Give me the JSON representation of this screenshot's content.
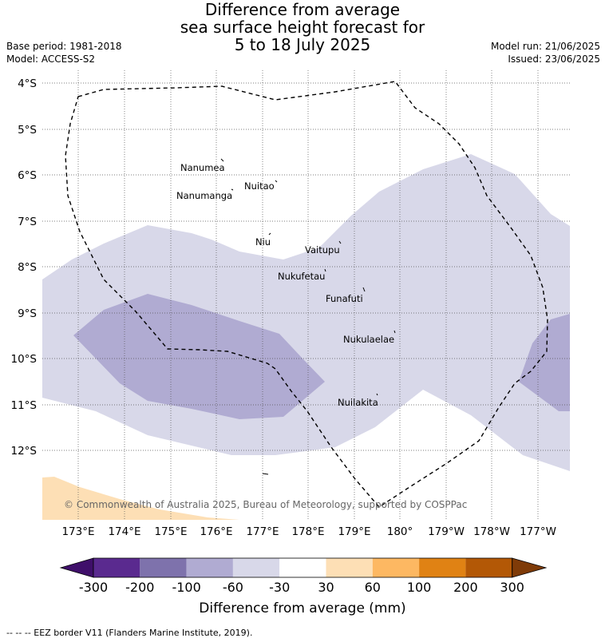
{
  "title": {
    "line1": "Difference from average",
    "line2": "sea surface height forecast for",
    "line3": "5 to 18 July 2025"
  },
  "meta": {
    "base_period": "Base period: 1981-2018",
    "model": "Model: ACCESS-S2",
    "model_run": "Model run: 21/06/2025",
    "issued": "Issued: 23/06/2025"
  },
  "map": {
    "lat_labels": [
      "4°S",
      "5°S",
      "6°S",
      "7°S",
      "8°S",
      "9°S",
      "10°S",
      "11°S",
      "12°S"
    ],
    "lon_labels": [
      "173°E",
      "174°E",
      "175°E",
      "176°E",
      "177°E",
      "178°E",
      "179°E",
      "180°",
      "179°W",
      "178°W",
      "177°W"
    ],
    "places": [
      "Nanumea",
      "Nuitao",
      "Nanumanga",
      "Niu",
      "Vaitupu",
      "Nukufetau",
      "Funafuti",
      "Nukulaelae",
      "Nuilakita"
    ],
    "copyright": "© Commonwealth of Australia 2025, Bureau of Meteorology, supported by COSPPac",
    "colors": {
      "-60_to_-30": "#d8d8e9",
      "-100_to_-60": "#b0abd2",
      "30_to_60": "#fddfb5"
    }
  },
  "colorbar": {
    "title": "Difference from average (mm)",
    "ticks": [
      "-300",
      "-200",
      "-100",
      "-60",
      "-30",
      "30",
      "60",
      "100",
      "200",
      "300"
    ],
    "colors": [
      "#3f0f6a",
      "#5a2a8f",
      "#7e72ac",
      "#b0abd2",
      "#d8d8e9",
      "#ffffff",
      "#fddfb5",
      "#fdb862",
      "#e08214",
      "#b35806",
      "#7f3b08"
    ]
  },
  "footer": "--  --  -- EEZ border V11 (Flanders Marine Institute, 2019)."
}
